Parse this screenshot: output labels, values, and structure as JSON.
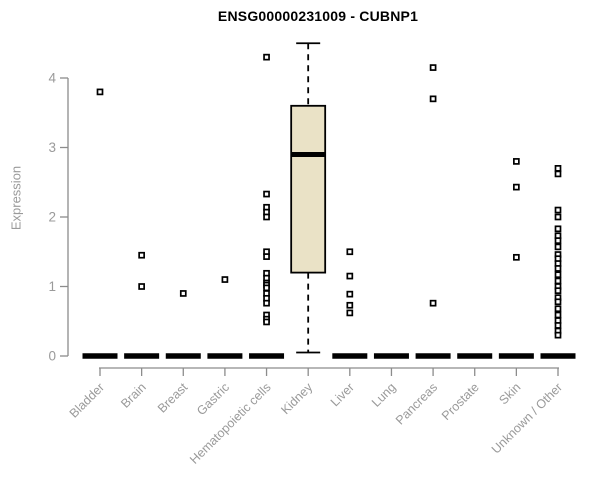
{
  "chart_data": {
    "type": "boxplot",
    "title": "ENSG00000231009 - CUBNP1",
    "ylabel": "Expression",
    "xlabel": "",
    "ylim": [
      0,
      4.55
    ],
    "yticks": [
      0,
      1,
      2,
      3,
      4
    ],
    "grid": false,
    "legend": "none",
    "categories": [
      "Bladder",
      "Brain",
      "Breast",
      "Gastric",
      "Hematopoietic cells",
      "Kidney",
      "Liver",
      "Lung",
      "Pancreas",
      "Prostate",
      "Skin",
      "Unknown / Other"
    ],
    "boxes": [
      {
        "category": "Bladder",
        "q1": 0,
        "median": 0,
        "q3": 0,
        "whisker_low": 0,
        "whisker_high": 0,
        "outliers": [
          3.8
        ]
      },
      {
        "category": "Brain",
        "q1": 0,
        "median": 0,
        "q3": 0,
        "whisker_low": 0,
        "whisker_high": 0,
        "outliers": [
          1.45,
          1.0
        ]
      },
      {
        "category": "Breast",
        "q1": 0,
        "median": 0,
        "q3": 0,
        "whisker_low": 0,
        "whisker_high": 0,
        "outliers": [
          0.9
        ]
      },
      {
        "category": "Gastric",
        "q1": 0,
        "median": 0,
        "q3": 0,
        "whisker_low": 0,
        "whisker_high": 0,
        "outliers": [
          1.1
        ]
      },
      {
        "category": "Hematopoietic cells",
        "q1": 0,
        "median": 0,
        "q3": 0,
        "whisker_low": 0,
        "whisker_high": 0,
        "outliers": [
          4.3,
          2.33,
          2.14,
          2.07,
          2.0,
          1.5,
          1.43,
          1.19,
          1.12,
          1.05,
          1.02,
          0.98,
          0.9,
          0.83,
          0.76,
          0.59,
          0.53,
          0.49
        ]
      },
      {
        "category": "Kidney",
        "q1": 1.2,
        "median": 2.9,
        "q3": 3.6,
        "whisker_low": 0.05,
        "whisker_high": 4.5,
        "outliers": []
      },
      {
        "category": "Liver",
        "q1": 0,
        "median": 0,
        "q3": 0,
        "whisker_low": 0,
        "whisker_high": 0,
        "outliers": [
          1.5,
          1.15,
          0.89,
          0.73,
          0.62
        ]
      },
      {
        "category": "Lung",
        "q1": 0,
        "median": 0,
        "q3": 0,
        "whisker_low": 0,
        "whisker_high": 0,
        "outliers": []
      },
      {
        "category": "Pancreas",
        "q1": 0,
        "median": 0,
        "q3": 0,
        "whisker_low": 0,
        "whisker_high": 0,
        "outliers": [
          4.15,
          3.7,
          0.76
        ]
      },
      {
        "category": "Prostate",
        "q1": 0,
        "median": 0,
        "q3": 0,
        "whisker_low": 0,
        "whisker_high": 0,
        "outliers": []
      },
      {
        "category": "Skin",
        "q1": 0,
        "median": 0,
        "q3": 0,
        "whisker_low": 0,
        "whisker_high": 0,
        "outliers": [
          2.8,
          2.43,
          1.42
        ]
      },
      {
        "category": "Unknown / Other",
        "q1": 0,
        "median": 0,
        "q3": 0,
        "whisker_low": 0,
        "whisker_high": 0,
        "outliers": [
          2.7,
          2.62,
          2.1,
          2.0,
          1.83,
          1.73,
          1.66,
          1.57,
          1.46,
          1.4,
          1.33,
          1.26,
          1.17,
          1.08,
          1.0,
          0.94,
          0.84,
          0.78,
          0.68,
          0.59,
          0.51,
          0.44,
          0.36,
          0.3
        ]
      }
    ],
    "colors": {
      "box_fill": "#EAE2C6",
      "box_stroke": "#000000",
      "median": "#000000",
      "axis_line": "#8C8C8C",
      "axis_text": "#9A9A9A",
      "title": "#000000",
      "background": "#FFFFFF"
    }
  }
}
